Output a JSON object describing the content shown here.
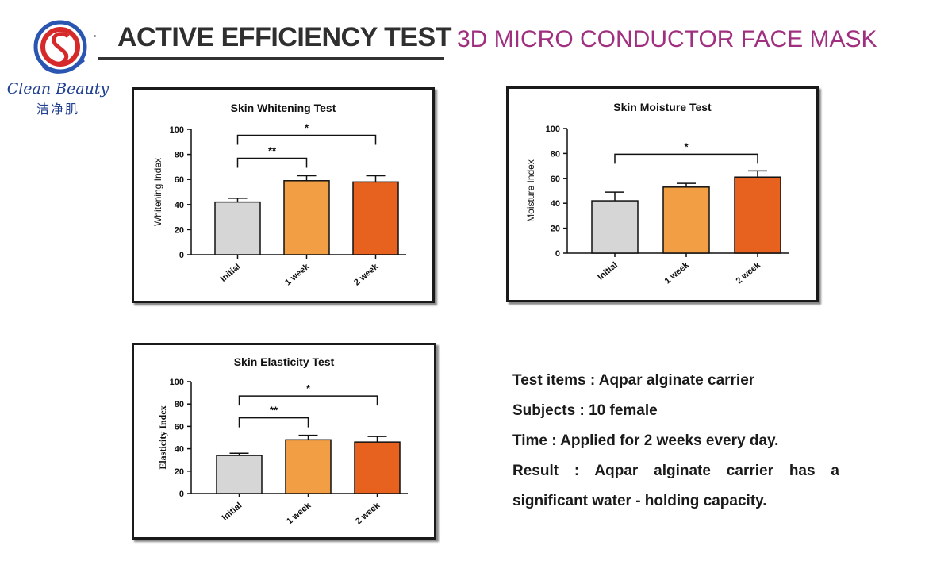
{
  "header": {
    "logo_text": "Clean Beauty",
    "logo_cn": "洁净肌",
    "title": "ACTIVE EFFICIENCY TEST",
    "subtitle": "3D MICRO CONDUCTOR FACE MASK"
  },
  "colors": {
    "initial": "#d6d6d6",
    "week1": "#f29e45",
    "week2": "#e8621f",
    "subtitle": "#a0307f"
  },
  "chart_data": [
    {
      "type": "bar",
      "title": "Skin Whitening Test",
      "ylabel": "Whitening Index",
      "xlabel": "",
      "categories": [
        "Initial",
        "1 week",
        "2 week"
      ],
      "values": [
        42,
        59,
        58
      ],
      "errors": [
        3,
        4,
        5
      ],
      "ylim": [
        0,
        100
      ],
      "yticks": [
        "0",
        "20",
        "40",
        "60",
        "80",
        "100"
      ],
      "significance": [
        {
          "from": 0,
          "to": 1,
          "label": "**"
        },
        {
          "from": 0,
          "to": 2,
          "label": "*"
        }
      ]
    },
    {
      "type": "bar",
      "title": "Skin Moisture Test",
      "ylabel": "Moisture Index",
      "xlabel": "",
      "categories": [
        "Initial",
        "1 week",
        "2 week"
      ],
      "values": [
        42,
        53,
        61
      ],
      "errors": [
        7,
        3,
        5
      ],
      "ylim": [
        0,
        100
      ],
      "yticks": [
        "0",
        "20",
        "40",
        "60",
        "80",
        "100"
      ],
      "significance": [
        {
          "from": 0,
          "to": 2,
          "label": "*"
        }
      ]
    },
    {
      "type": "bar",
      "title": "Skin Elasticity Test",
      "ylabel": "Elasticity Index",
      "xlabel": "",
      "categories": [
        "Initial",
        "1 week",
        "2 week"
      ],
      "values": [
        34,
        48,
        46
      ],
      "errors": [
        2,
        4,
        5
      ],
      "ylim": [
        0,
        100
      ],
      "yticks": [
        "0",
        "20",
        "40",
        "60",
        "80",
        "100"
      ],
      "significance": [
        {
          "from": 0,
          "to": 1,
          "label": "**"
        },
        {
          "from": 0,
          "to": 2,
          "label": "*"
        }
      ]
    }
  ],
  "info": {
    "test_items": "Test items : Aqpar alginate carrier",
    "subjects": "Subjects : 10 female",
    "time": "Time : Applied for 2 weeks every day.",
    "result_line1": "Result : Aqpar alginate carrier has a",
    "result_line2": "significant water - holding capacity."
  }
}
